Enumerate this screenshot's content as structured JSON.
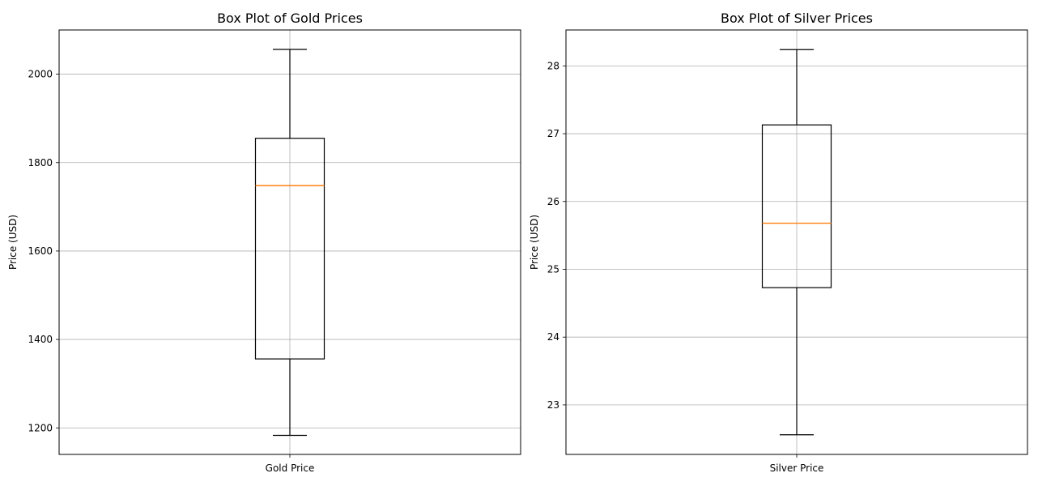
{
  "chart_data": [
    {
      "type": "box",
      "title": "Box Plot of Gold Prices",
      "xlabel": "",
      "ylabel": "Price (USD)",
      "categories": [
        "Gold Price"
      ],
      "ylim": [
        1140,
        2100
      ],
      "yticks": [
        1200,
        1400,
        1600,
        1800,
        2000
      ],
      "grid": true,
      "box": {
        "whisker_low": 1183,
        "q1": 1356,
        "median": 1748,
        "q3": 1855,
        "whisker_high": 2056
      },
      "colors": {
        "box": "#000000",
        "median": "#ff7f0e",
        "grid": "#b0b0b0"
      }
    },
    {
      "type": "box",
      "title": "Box Plot of Silver Prices",
      "xlabel": "",
      "ylabel": "Price (USD)",
      "categories": [
        "Silver Price"
      ],
      "ylim": [
        22.27,
        28.53
      ],
      "yticks": [
        23,
        24,
        25,
        26,
        27,
        28
      ],
      "grid": true,
      "box": {
        "whisker_low": 22.56,
        "q1": 24.73,
        "median": 25.68,
        "q3": 27.13,
        "whisker_high": 28.24
      },
      "colors": {
        "box": "#000000",
        "median": "#ff7f0e",
        "grid": "#b0b0b0"
      }
    }
  ]
}
